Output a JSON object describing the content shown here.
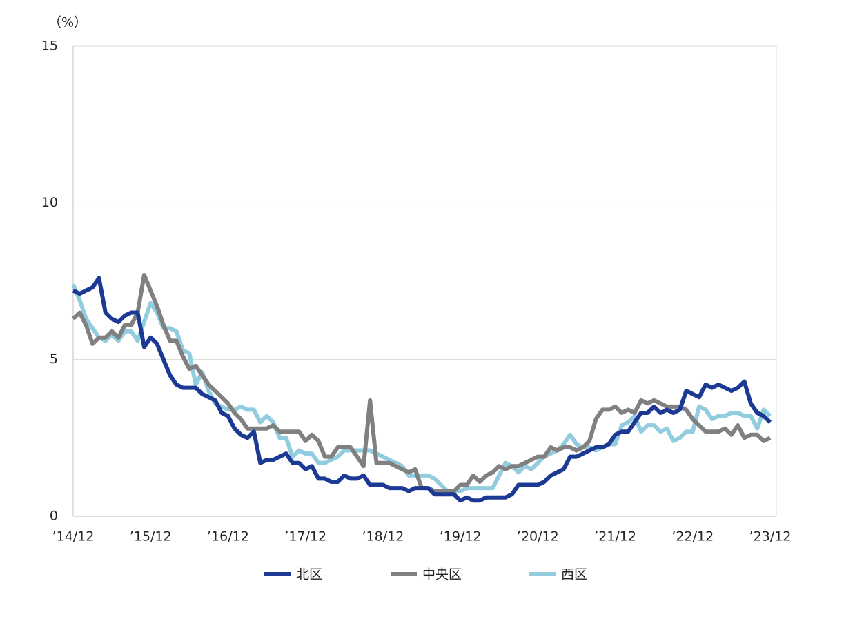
{
  "chart_data": {
    "type": "line",
    "y_label": "（%）",
    "categories": [
      "’14/12",
      null,
      null,
      null,
      null,
      null,
      null,
      null,
      null,
      null,
      null,
      null,
      "’15/12",
      null,
      null,
      null,
      null,
      null,
      null,
      null,
      null,
      null,
      null,
      null,
      "’16/12",
      null,
      null,
      null,
      null,
      null,
      null,
      null,
      null,
      null,
      null,
      null,
      "’17/12",
      null,
      null,
      null,
      null,
      null,
      null,
      null,
      null,
      null,
      null,
      null,
      "’18/12",
      null,
      null,
      null,
      null,
      null,
      null,
      null,
      null,
      null,
      null,
      null,
      "’19/12",
      null,
      null,
      null,
      null,
      null,
      null,
      null,
      null,
      null,
      null,
      null,
      "’20/12",
      null,
      null,
      null,
      null,
      null,
      null,
      null,
      null,
      null,
      null,
      null,
      "’21/12",
      null,
      null,
      null,
      null,
      null,
      null,
      null,
      null,
      null,
      null,
      null,
      "’22/12",
      null,
      null,
      null,
      null,
      null,
      null,
      null,
      null,
      null,
      null,
      null,
      "’23/12"
    ],
    "series": [
      {
        "name": "北区",
        "color": "#1c3a94",
        "values": [
          7.2,
          7.1,
          7.2,
          7.3,
          7.6,
          6.5,
          6.3,
          6.2,
          6.4,
          6.5,
          6.5,
          5.4,
          5.7,
          5.5,
          5.0,
          4.5,
          4.2,
          4.1,
          4.1,
          4.1,
          3.9,
          3.8,
          3.7,
          3.3,
          3.2,
          2.8,
          2.6,
          2.5,
          2.7,
          1.7,
          1.8,
          1.8,
          1.9,
          2.0,
          1.7,
          1.7,
          1.5,
          1.6,
          1.2,
          1.2,
          1.1,
          1.1,
          1.3,
          1.2,
          1.2,
          1.3,
          1.0,
          1.0,
          1.0,
          0.9,
          0.9,
          0.9,
          0.8,
          0.9,
          0.9,
          0.9,
          0.7,
          0.7,
          0.7,
          0.7,
          0.5,
          0.6,
          0.5,
          0.5,
          0.6,
          0.6,
          0.6,
          0.6,
          0.7,
          1.0,
          1.0,
          1.0,
          1.0,
          1.1,
          1.3,
          1.4,
          1.5,
          1.9,
          1.9,
          2.0,
          2.1,
          2.2,
          2.2,
          2.3,
          2.6,
          2.7,
          2.7,
          3.0,
          3.3,
          3.3,
          3.5,
          3.3,
          3.4,
          3.3,
          3.4,
          4.0,
          3.9,
          3.8,
          4.2,
          4.1,
          4.2,
          4.1,
          4.0,
          4.1,
          4.3,
          3.6,
          3.3,
          3.2,
          3.0
        ]
      },
      {
        "name": "中央区",
        "color": "#808080",
        "values": [
          6.3,
          6.5,
          6.1,
          5.5,
          5.7,
          5.7,
          5.9,
          5.7,
          6.1,
          6.1,
          6.5,
          7.7,
          7.2,
          6.7,
          6.1,
          5.6,
          5.6,
          5.1,
          4.7,
          4.8,
          4.5,
          4.2,
          4.0,
          3.8,
          3.6,
          3.3,
          3.1,
          2.8,
          2.8,
          2.8,
          2.8,
          2.9,
          2.7,
          2.7,
          2.7,
          2.7,
          2.4,
          2.6,
          2.4,
          1.9,
          1.9,
          2.2,
          2.2,
          2.2,
          1.9,
          1.6,
          3.7,
          1.7,
          1.7,
          1.7,
          1.6,
          1.5,
          1.4,
          1.5,
          0.9,
          0.9,
          0.8,
          0.8,
          0.8,
          0.8,
          1.0,
          1.0,
          1.3,
          1.1,
          1.3,
          1.4,
          1.6,
          1.5,
          1.6,
          1.6,
          1.7,
          1.8,
          1.9,
          1.9,
          2.2,
          2.1,
          2.2,
          2.2,
          2.1,
          2.2,
          2.4,
          3.1,
          3.4,
          3.4,
          3.5,
          3.3,
          3.4,
          3.3,
          3.7,
          3.6,
          3.7,
          3.6,
          3.5,
          3.5,
          3.5,
          3.4,
          3.1,
          2.9,
          2.7,
          2.7,
          2.7,
          2.8,
          2.6,
          2.9,
          2.5,
          2.6,
          2.6,
          2.4,
          2.5
        ]
      },
      {
        "name": "西区",
        "color": "#92cddf",
        "values": [
          7.4,
          6.9,
          6.3,
          6.0,
          5.7,
          5.6,
          5.8,
          5.6,
          5.9,
          5.9,
          5.6,
          6.2,
          6.8,
          6.5,
          6.0,
          6.0,
          5.9,
          5.3,
          5.2,
          4.2,
          4.6,
          4.0,
          3.6,
          3.5,
          3.4,
          3.4,
          3.5,
          3.4,
          3.4,
          3.0,
          3.2,
          3.0,
          2.5,
          2.5,
          1.9,
          2.1,
          2.0,
          2.0,
          1.7,
          1.7,
          1.8,
          1.9,
          2.1,
          2.1,
          2.1,
          2.1,
          2.1,
          2.0,
          1.9,
          1.8,
          1.7,
          1.6,
          1.3,
          1.3,
          1.3,
          1.3,
          1.2,
          1.0,
          0.8,
          0.8,
          0.8,
          0.9,
          0.9,
          0.9,
          0.9,
          0.9,
          1.3,
          1.7,
          1.6,
          1.4,
          1.6,
          1.5,
          1.7,
          1.9,
          2.0,
          2.1,
          2.3,
          2.6,
          2.3,
          2.2,
          2.2,
          2.1,
          2.2,
          2.3,
          2.3,
          2.9,
          3.0,
          3.2,
          2.7,
          2.9,
          2.9,
          2.7,
          2.8,
          2.4,
          2.5,
          2.7,
          2.7,
          3.5,
          3.4,
          3.1,
          3.2,
          3.2,
          3.3,
          3.3,
          3.2,
          3.2,
          2.8,
          3.4,
          3.2
        ]
      }
    ],
    "ylim": [
      0,
      15
    ],
    "yticks": [
      0,
      5,
      10,
      15
    ],
    "grid": true,
    "legend": "bottom"
  }
}
